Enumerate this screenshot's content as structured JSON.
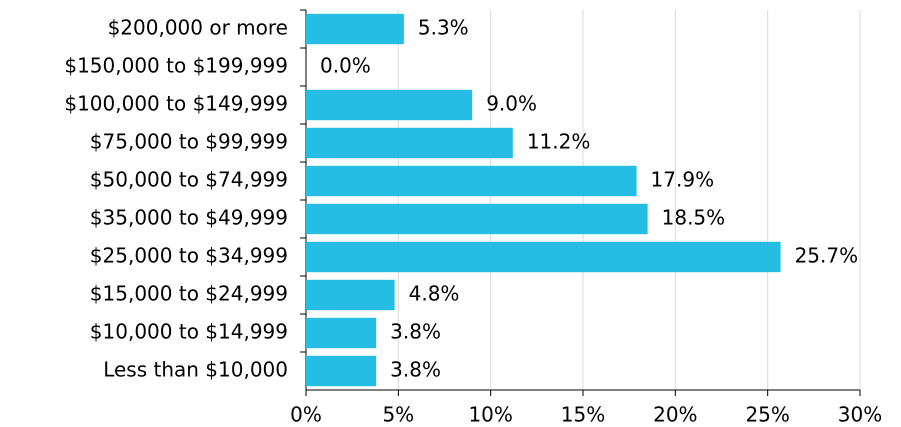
{
  "chart_data": {
    "type": "bar",
    "orientation": "horizontal",
    "categories": [
      "$200,000 or more",
      "$150,000 to $199,999",
      "$100,000 to $149,999",
      "$75,000 to $99,999",
      "$50,000 to $74,999",
      "$35,000 to $49,999",
      "$25,000 to $34,999",
      "$15,000 to $24,999",
      "$10,000 to $14,999",
      "Less than $10,000"
    ],
    "values": [
      5.3,
      0.0,
      9.0,
      11.2,
      17.9,
      18.5,
      25.7,
      4.8,
      3.8,
      3.8
    ],
    "value_labels": [
      "5.3%",
      "0.0%",
      "9.0%",
      "11.2%",
      "17.9%",
      "18.5%",
      "25.7%",
      "4.8%",
      "3.8%",
      "3.8%"
    ],
    "color": "#25bde3",
    "xlim": [
      0,
      30
    ],
    "xticks": [
      {
        "value": 0,
        "label": "0%"
      },
      {
        "value": 5,
        "label": "5%"
      },
      {
        "value": 10,
        "label": "10%"
      },
      {
        "value": 15,
        "label": "15%"
      },
      {
        "value": 20,
        "label": "20%"
      },
      {
        "value": 25,
        "label": "25%"
      },
      {
        "value": 30,
        "label": "30%"
      }
    ],
    "grid": true
  }
}
